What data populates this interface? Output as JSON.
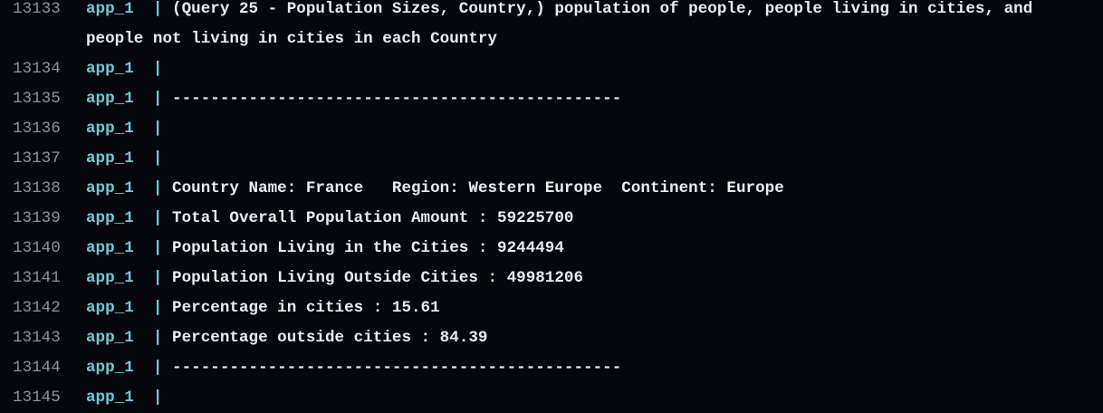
{
  "lines": [
    {
      "number": "13133",
      "service": "app_1",
      "pipe": "|",
      "text": "(Query 25 - Population Sizes, Country,) population of people, people living in cities, and people not living in cities in each Country"
    },
    {
      "number": "13134",
      "service": "app_1",
      "pipe": "|"
    },
    {
      "number": "13135",
      "service": "app_1",
      "pipe": "|",
      "text": "-----------------------------------------------"
    },
    {
      "number": "13136",
      "service": "app_1",
      "pipe": "|"
    },
    {
      "number": "13137",
      "service": "app_1",
      "pipe": "|"
    },
    {
      "number": "13138",
      "service": "app_1",
      "pipe": "|",
      "text": "Country Name: France   Region: Western Europe  Continent: Europe"
    },
    {
      "number": "13139",
      "service": "app_1",
      "pipe": "|",
      "text": "Total Overall Population Amount : 59225700"
    },
    {
      "number": "13140",
      "service": "app_1",
      "pipe": "|",
      "text": "Population Living in the Cities : 9244494"
    },
    {
      "number": "13141",
      "service": "app_1",
      "pipe": "|",
      "text": "Population Living Outside Cities : 49981206"
    },
    {
      "number": "13142",
      "service": "app_1",
      "pipe": "|",
      "text": "Percentage in cities : 15.61"
    },
    {
      "number": "13143",
      "service": "app_1",
      "pipe": "|",
      "text": "Percentage outside cities : 84.39"
    },
    {
      "number": "13144",
      "service": "app_1",
      "pipe": "|",
      "text": "-----------------------------------------------"
    },
    {
      "number": "13145",
      "service": "app_1",
      "pipe": "|"
    }
  ]
}
